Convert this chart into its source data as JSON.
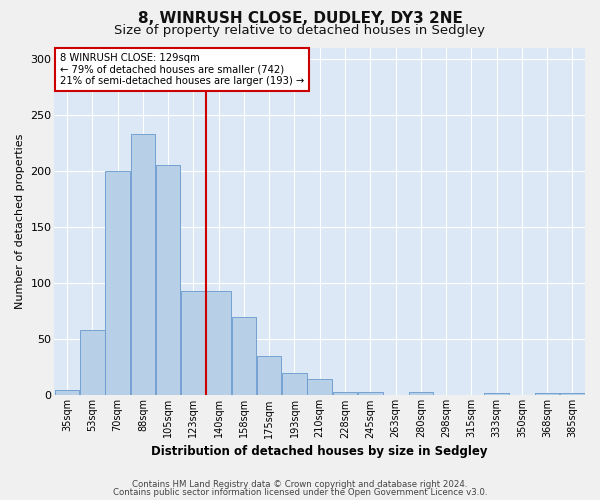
{
  "title1": "8, WINRUSH CLOSE, DUDLEY, DY3 2NE",
  "title2": "Size of property relative to detached houses in Sedgley",
  "xlabel": "Distribution of detached houses by size in Sedgley",
  "ylabel": "Number of detached properties",
  "bin_labels": [
    "35sqm",
    "53sqm",
    "70sqm",
    "88sqm",
    "105sqm",
    "123sqm",
    "140sqm",
    "158sqm",
    "175sqm",
    "193sqm",
    "210sqm",
    "228sqm",
    "245sqm",
    "263sqm",
    "280sqm",
    "298sqm",
    "315sqm",
    "333sqm",
    "350sqm",
    "368sqm",
    "385sqm"
  ],
  "bar_values": [
    5,
    58,
    200,
    233,
    205,
    93,
    93,
    70,
    35,
    20,
    15,
    3,
    3,
    0,
    3,
    0,
    0,
    2,
    0,
    2,
    2
  ],
  "bar_color": "#b8cfe8",
  "bar_edge_color": "#6699cc",
  "vline_color": "#cc0000",
  "annotation_text": "8 WINRUSH CLOSE: 129sqm\n← 79% of detached houses are smaller (742)\n21% of semi-detached houses are larger (193) →",
  "annotation_box_color": "#ffffff",
  "annotation_box_edge": "#cc0000",
  "footer1": "Contains HM Land Registry data © Crown copyright and database right 2024.",
  "footer2": "Contains public sector information licensed under the Open Government Licence v3.0.",
  "ylim": [
    0,
    310
  ],
  "yticks": [
    0,
    50,
    100,
    150,
    200,
    250,
    300
  ],
  "bg_color": "#dce8f5",
  "grid_color": "#ffffff",
  "title1_fontsize": 11,
  "title2_fontsize": 9.5
}
